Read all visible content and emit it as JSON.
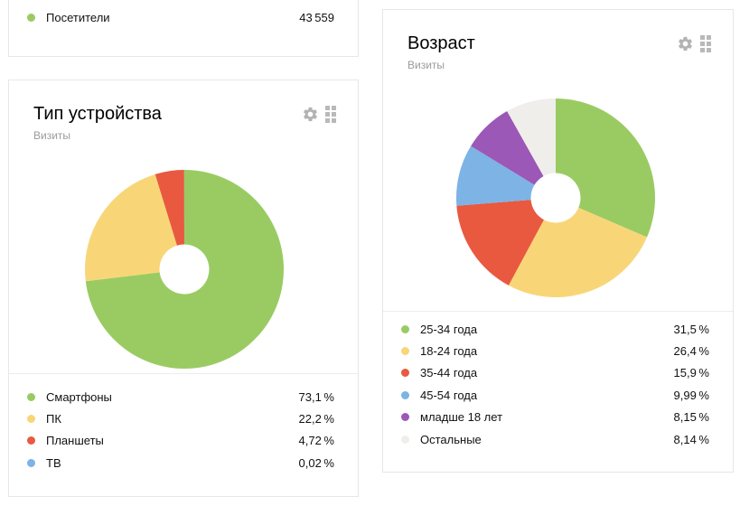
{
  "window": {
    "background": "#ffffff"
  },
  "visitors_card": {
    "label": "Посетители",
    "value": "43 559",
    "dot_color": "#9ACB63"
  },
  "device_card": {
    "title": "Тип устройства",
    "subtitle": "Визиты"
  },
  "age_card": {
    "title": "Возраст",
    "subtitle": "Визиты"
  },
  "card_actions": {
    "settings_icon": "gear-icon",
    "drag_icon": "drag-handle-icon"
  },
  "colors": {
    "card_border": "#e7e7e7",
    "divider": "#ededed",
    "subtitle_text": "#9b9b9b",
    "icon_gray": "#b3b3b3",
    "green": "#9ACB63",
    "yellow": "#F8D678",
    "red": "#E8593F",
    "blue": "#7DB3E5",
    "purple": "#9C58B6",
    "light_gray": "#F0EEEA"
  },
  "chart_data": [
    {
      "type": "pie",
      "title": "Тип устройства",
      "metric": "Визиты",
      "donut": true,
      "donut_hole_ratio": 0.25,
      "start_angle_deg": 0,
      "direction": "clockwise",
      "legend_position": "bottom",
      "slices": [
        {
          "label": "Смартфоны",
          "value": 73.1,
          "display": "73,1 %",
          "color": "#9ACB63"
        },
        {
          "label": "ПК",
          "value": 22.2,
          "display": "22,2 %",
          "color": "#F8D678"
        },
        {
          "label": "Планшеты",
          "value": 4.72,
          "display": "4,72 %",
          "color": "#E8593F"
        },
        {
          "label": "ТВ",
          "value": 0.02,
          "display": "0,02 %",
          "color": "#7DB3E5"
        }
      ]
    },
    {
      "type": "pie",
      "title": "Возраст",
      "metric": "Визиты",
      "donut": true,
      "donut_hole_ratio": 0.25,
      "start_angle_deg": 0,
      "direction": "clockwise",
      "legend_position": "bottom",
      "slices": [
        {
          "label": "25-34 года",
          "value": 31.5,
          "display": "31,5 %",
          "color": "#9ACB63"
        },
        {
          "label": "18-24 года",
          "value": 26.4,
          "display": "26,4 %",
          "color": "#F8D678"
        },
        {
          "label": "35-44 года",
          "value": 15.9,
          "display": "15,9 %",
          "color": "#E8593F"
        },
        {
          "label": "45-54 года",
          "value": 9.99,
          "display": "9,99 %",
          "color": "#7DB3E5"
        },
        {
          "label": "младше 18 лет",
          "value": 8.15,
          "display": "8,15 %",
          "color": "#9C58B6"
        },
        {
          "label": "Остальные",
          "value": 8.14,
          "display": "8,14 %",
          "color": "#F0EEEA"
        }
      ]
    }
  ]
}
